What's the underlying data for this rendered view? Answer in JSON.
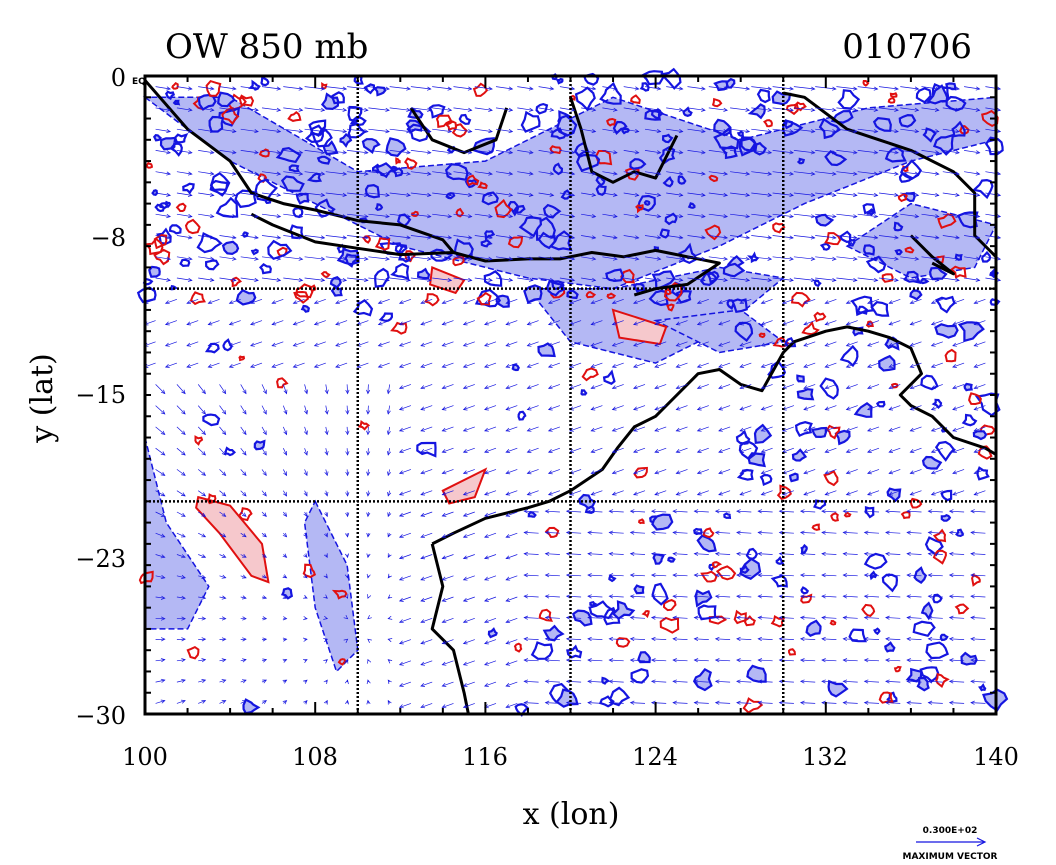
{
  "header": {
    "title_left": "OW 850 mb",
    "title_right": "010706"
  },
  "axes": {
    "xlabel": "x (lon)",
    "ylabel": "y (lat)",
    "x_ticks": [
      "100",
      "108",
      "116",
      "124",
      "132",
      "140"
    ],
    "y_ticks": [
      "0",
      "−8",
      "−15",
      "−23",
      "−30"
    ],
    "y_top_suffix": "EQ"
  },
  "legend": {
    "vector_value": "0.300E+02",
    "vector_label": "MAXIMUM VECTOR"
  },
  "map": {
    "lon_range": [
      100,
      140
    ],
    "lat_range": [
      -30,
      0
    ],
    "grid_lons": [
      110,
      120,
      130
    ],
    "grid_lats": [
      -10,
      -20
    ],
    "colors": {
      "negative_contour": "#1515e0",
      "negative_fill": "#b4b8f4",
      "positive_contour": "#e01010",
      "positive_fill": "#f6c8cc",
      "coast": "#000000",
      "vector": "#1515e0"
    }
  }
}
